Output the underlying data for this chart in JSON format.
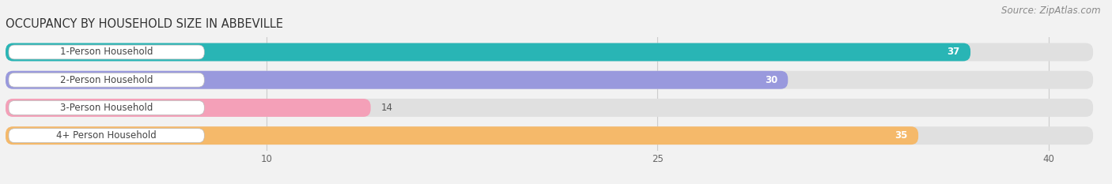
{
  "title": "OCCUPANCY BY HOUSEHOLD SIZE IN ABBEVILLE",
  "source": "Source: ZipAtlas.com",
  "categories": [
    "1-Person Household",
    "2-Person Household",
    "3-Person Household",
    "4+ Person Household"
  ],
  "values": [
    37,
    30,
    14,
    35
  ],
  "bar_colors": [
    "#29b5b5",
    "#9999dd",
    "#f4a0b8",
    "#f5b96a"
  ],
  "xlim_max": 42,
  "xticks": [
    10,
    25,
    40
  ],
  "bg_color": "#f2f2f2",
  "bar_bg_color": "#e0e0e0",
  "title_fontsize": 10.5,
  "source_fontsize": 8.5,
  "val_label_fontsize": 8.5,
  "category_fontsize": 8.5
}
